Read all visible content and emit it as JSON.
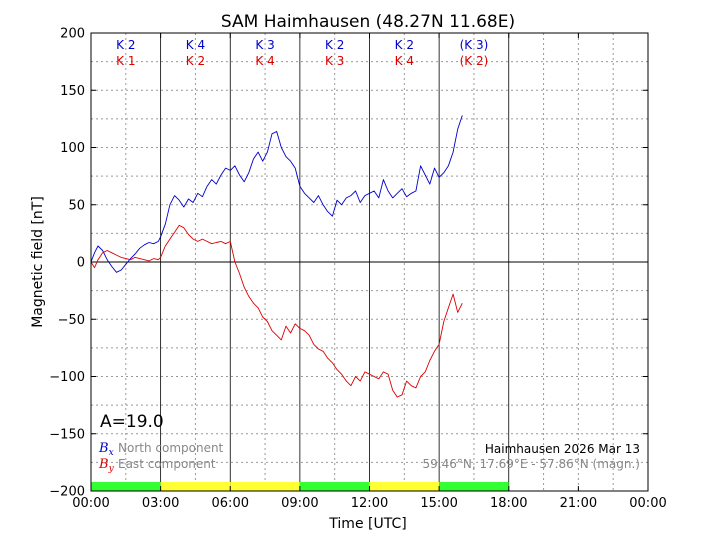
{
  "chart_data": {
    "type": "line",
    "title": "SAM Haimhausen (48.27N 11.68E)",
    "xlabel": "Time [UTC]",
    "ylabel": "Magnetic field [nT]",
    "xlim_hours": [
      0,
      24
    ],
    "ylim": [
      -200,
      200
    ],
    "x_ticks": [
      "00:00",
      "03:00",
      "06:00",
      "09:00",
      "12:00",
      "15:00",
      "18:00",
      "21:00",
      "00:00"
    ],
    "y_ticks": [
      200,
      150,
      100,
      50,
      0,
      -50,
      -100,
      -150,
      -200
    ],
    "grid": true,
    "activity_index": "A=19.0",
    "station_date": "Haimhausen 2026 Mar 13",
    "station_coords": "59.46°N, 17.69°E - 57.86°N (magn.)",
    "legend": {
      "placement": "bottom-left",
      "entries": [
        {
          "symbol": "B",
          "subscript": "x",
          "label": "North component",
          "color": "#0000cc"
        },
        {
          "symbol": "B",
          "subscript": "y",
          "label": "East component",
          "color": "#dd0000"
        }
      ]
    },
    "k_indices": {
      "north": [
        "K 2",
        "K 4",
        "K 3",
        "K 2",
        "K 2",
        "(K 3)"
      ],
      "east": [
        "K 1",
        "K 2",
        "K 4",
        "K 3",
        "K 4",
        "(K 2)"
      ]
    },
    "activity_bar": [
      {
        "start": 0,
        "end": 3,
        "color": "#33ff33"
      },
      {
        "start": 3,
        "end": 6,
        "color": "#ffff33"
      },
      {
        "start": 6,
        "end": 9,
        "color": "#ffff33"
      },
      {
        "start": 9,
        "end": 12,
        "color": "#33ff33"
      },
      {
        "start": 12,
        "end": 15,
        "color": "#ffff33"
      },
      {
        "start": 15,
        "end": 18,
        "color": "#33ff33"
      }
    ],
    "series": [
      {
        "name": "North component",
        "color": "#0000cc",
        "x": [
          0,
          0.15,
          0.3,
          0.5,
          0.7,
          0.9,
          1.1,
          1.3,
          1.5,
          1.7,
          1.9,
          2.1,
          2.3,
          2.5,
          2.7,
          2.9,
          3.0,
          3.2,
          3.4,
          3.6,
          3.8,
          4.0,
          4.2,
          4.4,
          4.6,
          4.8,
          5.0,
          5.2,
          5.4,
          5.6,
          5.8,
          6.0,
          6.2,
          6.4,
          6.6,
          6.8,
          7.0,
          7.2,
          7.4,
          7.6,
          7.8,
          8.0,
          8.2,
          8.4,
          8.6,
          8.8,
          9.0,
          9.2,
          9.4,
          9.6,
          9.8,
          10.0,
          10.2,
          10.4,
          10.6,
          10.8,
          11.0,
          11.2,
          11.4,
          11.6,
          11.8,
          12.0,
          12.2,
          12.4,
          12.6,
          12.8,
          13.0,
          13.2,
          13.4,
          13.6,
          13.8,
          14.0,
          14.2,
          14.4,
          14.6,
          14.8,
          15.0,
          15.2,
          15.4,
          15.6,
          15.8,
          16.0
        ],
        "values": [
          0,
          8,
          14,
          10,
          2,
          -4,
          -9,
          -7,
          -2,
          3,
          7,
          12,
          15,
          17,
          16,
          18,
          22,
          33,
          50,
          58,
          54,
          48,
          55,
          52,
          60,
          57,
          66,
          72,
          68,
          76,
          82,
          80,
          84,
          76,
          70,
          78,
          90,
          96,
          88,
          96,
          112,
          114,
          100,
          92,
          88,
          82,
          66,
          60,
          56,
          52,
          58,
          50,
          44,
          40,
          54,
          50,
          56,
          58,
          62,
          52,
          58,
          60,
          62,
          56,
          72,
          62,
          56,
          60,
          64,
          57,
          60,
          62,
          84,
          76,
          68,
          82,
          74,
          78,
          84,
          96,
          116,
          128
        ]
      },
      {
        "name": "East component",
        "color": "#dd0000",
        "x": [
          0,
          0.15,
          0.3,
          0.5,
          0.7,
          0.9,
          1.1,
          1.3,
          1.5,
          1.7,
          1.9,
          2.1,
          2.3,
          2.5,
          2.7,
          2.9,
          3.0,
          3.2,
          3.4,
          3.6,
          3.8,
          4.0,
          4.2,
          4.4,
          4.6,
          4.8,
          5.0,
          5.2,
          5.4,
          5.6,
          5.8,
          6.0,
          6.2,
          6.4,
          6.6,
          6.8,
          7.0,
          7.2,
          7.4,
          7.6,
          7.8,
          8.0,
          8.2,
          8.4,
          8.6,
          8.8,
          9.0,
          9.2,
          9.4,
          9.6,
          9.8,
          10.0,
          10.2,
          10.4,
          10.6,
          10.8,
          11.0,
          11.2,
          11.4,
          11.6,
          11.8,
          12.0,
          12.2,
          12.4,
          12.6,
          12.8,
          13.0,
          13.2,
          13.4,
          13.6,
          13.8,
          14.0,
          14.2,
          14.4,
          14.6,
          14.8,
          15.0,
          15.2,
          15.4,
          15.6,
          15.8,
          16.0
        ],
        "values": [
          0,
          -5,
          2,
          8,
          10,
          8,
          6,
          4,
          3,
          2,
          4,
          3,
          2,
          1,
          3,
          2,
          4,
          14,
          20,
          26,
          32,
          30,
          24,
          20,
          18,
          20,
          18,
          16,
          17,
          18,
          16,
          18,
          0,
          -10,
          -22,
          -30,
          -36,
          -40,
          -48,
          -52,
          -60,
          -64,
          -68,
          -56,
          -62,
          -54,
          -58,
          -60,
          -64,
          -72,
          -76,
          -78,
          -84,
          -88,
          -94,
          -98,
          -104,
          -108,
          -100,
          -104,
          -96,
          -98,
          -100,
          -102,
          -96,
          -98,
          -112,
          -118,
          -116,
          -104,
          -108,
          -110,
          -100,
          -96,
          -86,
          -78,
          -72,
          -52,
          -40,
          -28,
          -44,
          -36
        ]
      }
    ]
  }
}
